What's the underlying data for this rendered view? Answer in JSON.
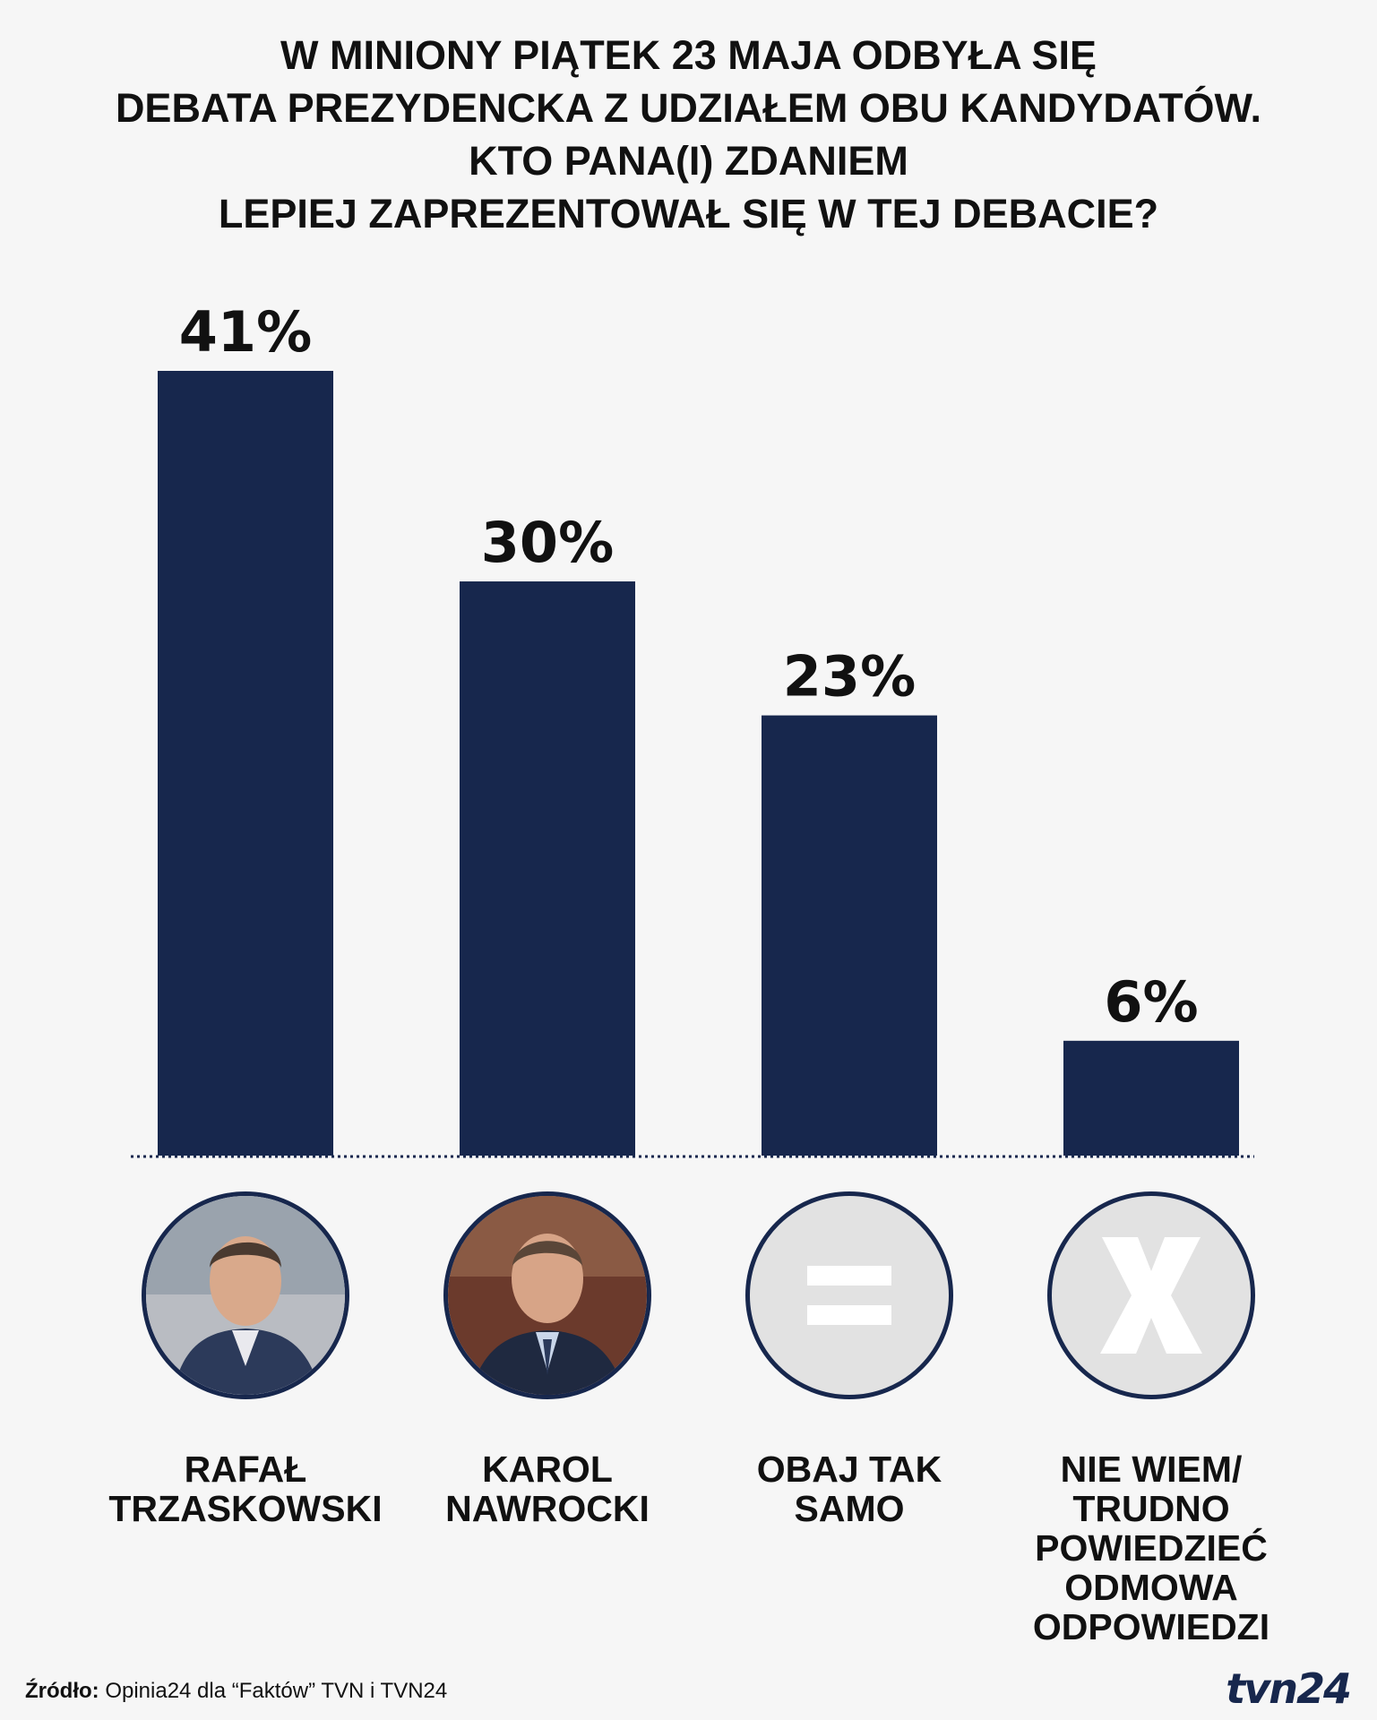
{
  "title_lines": [
    "W MINIONY PIĄTEK 23 MAJA ODBYŁA SIĘ",
    "DEBATA PREZYDENCKA Z UDZIAŁEM OBU KANDYDATÓW.",
    "KTO PANA(I) ZDANIEM",
    "LEPIEJ ZAPREZENTOWAŁ SIĘ W TEJ DEBACIE?"
  ],
  "chart_data": {
    "type": "bar",
    "title": "W MINIONY PIĄTEK 23 MAJA ODBYŁA SIĘ DEBATA PREZYDENCKA Z UDZIAŁEM OBU KANDYDATÓW. KTO PANA(I) ZDANIEM LEPIEJ ZAPREZENTOWAŁ SIĘ W TEJ DEBACIE?",
    "categories": [
      "RAFAŁ TRZASKOWSKI",
      "KAROL NAWROCKI",
      "OBAJ TAK SAMO",
      "NIE WIEM/ TRUDNO POWIEDZIEĆ ODMOWA ODPOWIEDZI"
    ],
    "values": [
      41,
      30,
      23,
      6
    ],
    "value_labels": [
      "41%",
      "30%",
      "23%",
      "6%"
    ],
    "unit": "%",
    "xlabel": "",
    "ylabel": "",
    "ylim": [
      0,
      41
    ],
    "grid": false,
    "bar_color": "#17274d"
  },
  "categories": [
    {
      "label": "RAFAŁ\nTRZASKOWSKI",
      "icon": "person-photo-trzaskowski"
    },
    {
      "label": "KAROL\nNAWROCKI",
      "icon": "person-photo-nawrocki"
    },
    {
      "label": "OBAJ TAK\nSAMO",
      "icon": "equals-icon"
    },
    {
      "label": "NIE WIEM/\nTRUDNO\nPOWIEDZIEĆ\nODMOWA\nODPOWIEDZI",
      "icon": "x-icon"
    }
  ],
  "source": {
    "label": "Źródło:",
    "text": "Opinia24 dla “Faktów” TVN i TVN24"
  },
  "logo": "tvn24",
  "colors": {
    "bar": "#17274d",
    "background": "#f6f6f6",
    "icon_fill": "#e2e2e2",
    "icon_symbol": "#ffffff"
  }
}
